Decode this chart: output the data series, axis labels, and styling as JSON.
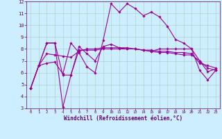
{
  "background_color": "#cceeff",
  "grid_color": "#aaccbb",
  "line_color": "#990099",
  "xlim": [
    -0.5,
    23.5
  ],
  "ylim": [
    3,
    12
  ],
  "xticks": [
    0,
    1,
    2,
    3,
    4,
    5,
    6,
    7,
    8,
    9,
    10,
    11,
    12,
    13,
    14,
    15,
    16,
    17,
    18,
    19,
    20,
    21,
    22,
    23
  ],
  "yticks": [
    3,
    4,
    5,
    6,
    7,
    8,
    9,
    10,
    11,
    12
  ],
  "xlabel": "Windchill (Refroidissement éolien,°C)",
  "series": [
    {
      "x": [
        0,
        1,
        2,
        3,
        4,
        5,
        6,
        7,
        8,
        9,
        10,
        11,
        12,
        13,
        14,
        15,
        16,
        17,
        18,
        19,
        20,
        21,
        22,
        23
      ],
      "y": [
        4.7,
        6.6,
        6.8,
        6.9,
        5.9,
        8.5,
        7.7,
        6.5,
        6.0,
        8.7,
        11.8,
        11.1,
        11.8,
        11.4,
        10.8,
        11.1,
        10.7,
        9.9,
        8.8,
        8.5,
        8.0,
        7.0,
        6.1,
        6.3
      ],
      "marker": "D",
      "markersize": 1.8,
      "linewidth": 0.8
    },
    {
      "x": [
        0,
        1,
        2,
        3,
        4,
        5,
        6,
        7,
        8,
        9,
        10,
        11,
        12,
        13,
        14,
        15,
        16,
        17,
        18,
        19,
        20,
        21,
        22,
        23
      ],
      "y": [
        4.7,
        6.6,
        8.5,
        8.5,
        3.1,
        5.8,
        8.2,
        7.6,
        7.0,
        8.2,
        8.4,
        8.1,
        8.0,
        8.0,
        7.9,
        7.8,
        8.0,
        8.0,
        8.0,
        8.0,
        8.0,
        6.2,
        5.4,
        6.2
      ],
      "marker": "D",
      "markersize": 1.8,
      "linewidth": 0.8
    },
    {
      "x": [
        0,
        1,
        2,
        3,
        4,
        5,
        6,
        7,
        8,
        9,
        10,
        11,
        12,
        13,
        14,
        15,
        16,
        17,
        18,
        19,
        20,
        21,
        22,
        23
      ],
      "y": [
        4.7,
        6.6,
        8.5,
        8.5,
        5.8,
        5.8,
        7.9,
        7.9,
        7.9,
        8.0,
        8.0,
        8.0,
        8.0,
        8.0,
        7.9,
        7.9,
        7.8,
        7.8,
        7.7,
        7.7,
        7.6,
        6.8,
        6.6,
        6.4
      ],
      "marker": "D",
      "markersize": 1.8,
      "linewidth": 0.8
    },
    {
      "x": [
        0,
        1,
        2,
        3,
        4,
        5,
        6,
        7,
        8,
        9,
        10,
        11,
        12,
        13,
        14,
        15,
        16,
        17,
        18,
        19,
        20,
        21,
        22,
        23
      ],
      "y": [
        4.7,
        6.6,
        7.6,
        7.5,
        7.4,
        7.3,
        7.8,
        8.0,
        8.0,
        8.1,
        8.1,
        8.1,
        8.1,
        8.0,
        7.9,
        7.8,
        7.7,
        7.7,
        7.6,
        7.5,
        7.5,
        7.0,
        6.4,
        6.2
      ],
      "marker": "D",
      "markersize": 1.8,
      "linewidth": 0.8
    }
  ]
}
